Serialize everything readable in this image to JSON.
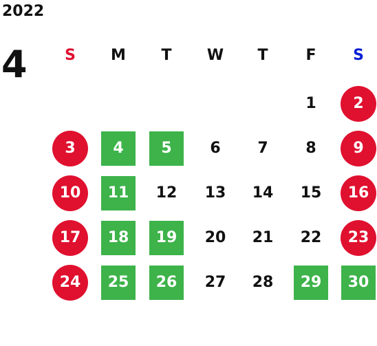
{
  "year": "2022",
  "month": "4",
  "colors": {
    "holiday_bg": "#e0102f",
    "highlight_bg": "#3db34a",
    "sunday_label": "#e0102f",
    "saturday_label": "#0a1fd6",
    "text": "#111111"
  },
  "weekdays": [
    "S",
    "M",
    "T",
    "W",
    "T",
    "F",
    "S"
  ],
  "weeks": [
    [
      null,
      null,
      null,
      null,
      null,
      {
        "d": "1",
        "t": "plain"
      },
      {
        "d": "2",
        "t": "holiday"
      }
    ],
    [
      {
        "d": "3",
        "t": "holiday"
      },
      {
        "d": "4",
        "t": "green"
      },
      {
        "d": "5",
        "t": "green"
      },
      {
        "d": "6",
        "t": "plain"
      },
      {
        "d": "7",
        "t": "plain"
      },
      {
        "d": "8",
        "t": "plain"
      },
      {
        "d": "9",
        "t": "holiday"
      }
    ],
    [
      {
        "d": "10",
        "t": "holiday"
      },
      {
        "d": "11",
        "t": "green"
      },
      {
        "d": "12",
        "t": "plain"
      },
      {
        "d": "13",
        "t": "plain"
      },
      {
        "d": "14",
        "t": "plain"
      },
      {
        "d": "15",
        "t": "plain"
      },
      {
        "d": "16",
        "t": "holiday"
      }
    ],
    [
      {
        "d": "17",
        "t": "holiday"
      },
      {
        "d": "18",
        "t": "green"
      },
      {
        "d": "19",
        "t": "green"
      },
      {
        "d": "20",
        "t": "plain"
      },
      {
        "d": "21",
        "t": "plain"
      },
      {
        "d": "22",
        "t": "plain"
      },
      {
        "d": "23",
        "t": "holiday"
      }
    ],
    [
      {
        "d": "24",
        "t": "holiday"
      },
      {
        "d": "25",
        "t": "green"
      },
      {
        "d": "26",
        "t": "green"
      },
      {
        "d": "27",
        "t": "plain"
      },
      {
        "d": "28",
        "t": "plain"
      },
      {
        "d": "29",
        "t": "green"
      },
      {
        "d": "30",
        "t": "green"
      }
    ]
  ]
}
